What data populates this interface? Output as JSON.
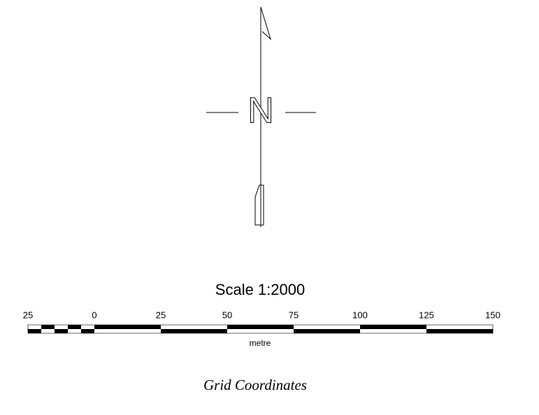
{
  "north_arrow": {
    "letter": "N"
  },
  "scale_bar": {
    "title": "Scale 1:2000",
    "ticks": [
      {
        "value": -25,
        "label": "25"
      },
      0,
      25,
      50,
      75,
      100,
      125,
      150
    ],
    "unit": "metre"
  },
  "caption": "Grid Coordinates"
}
